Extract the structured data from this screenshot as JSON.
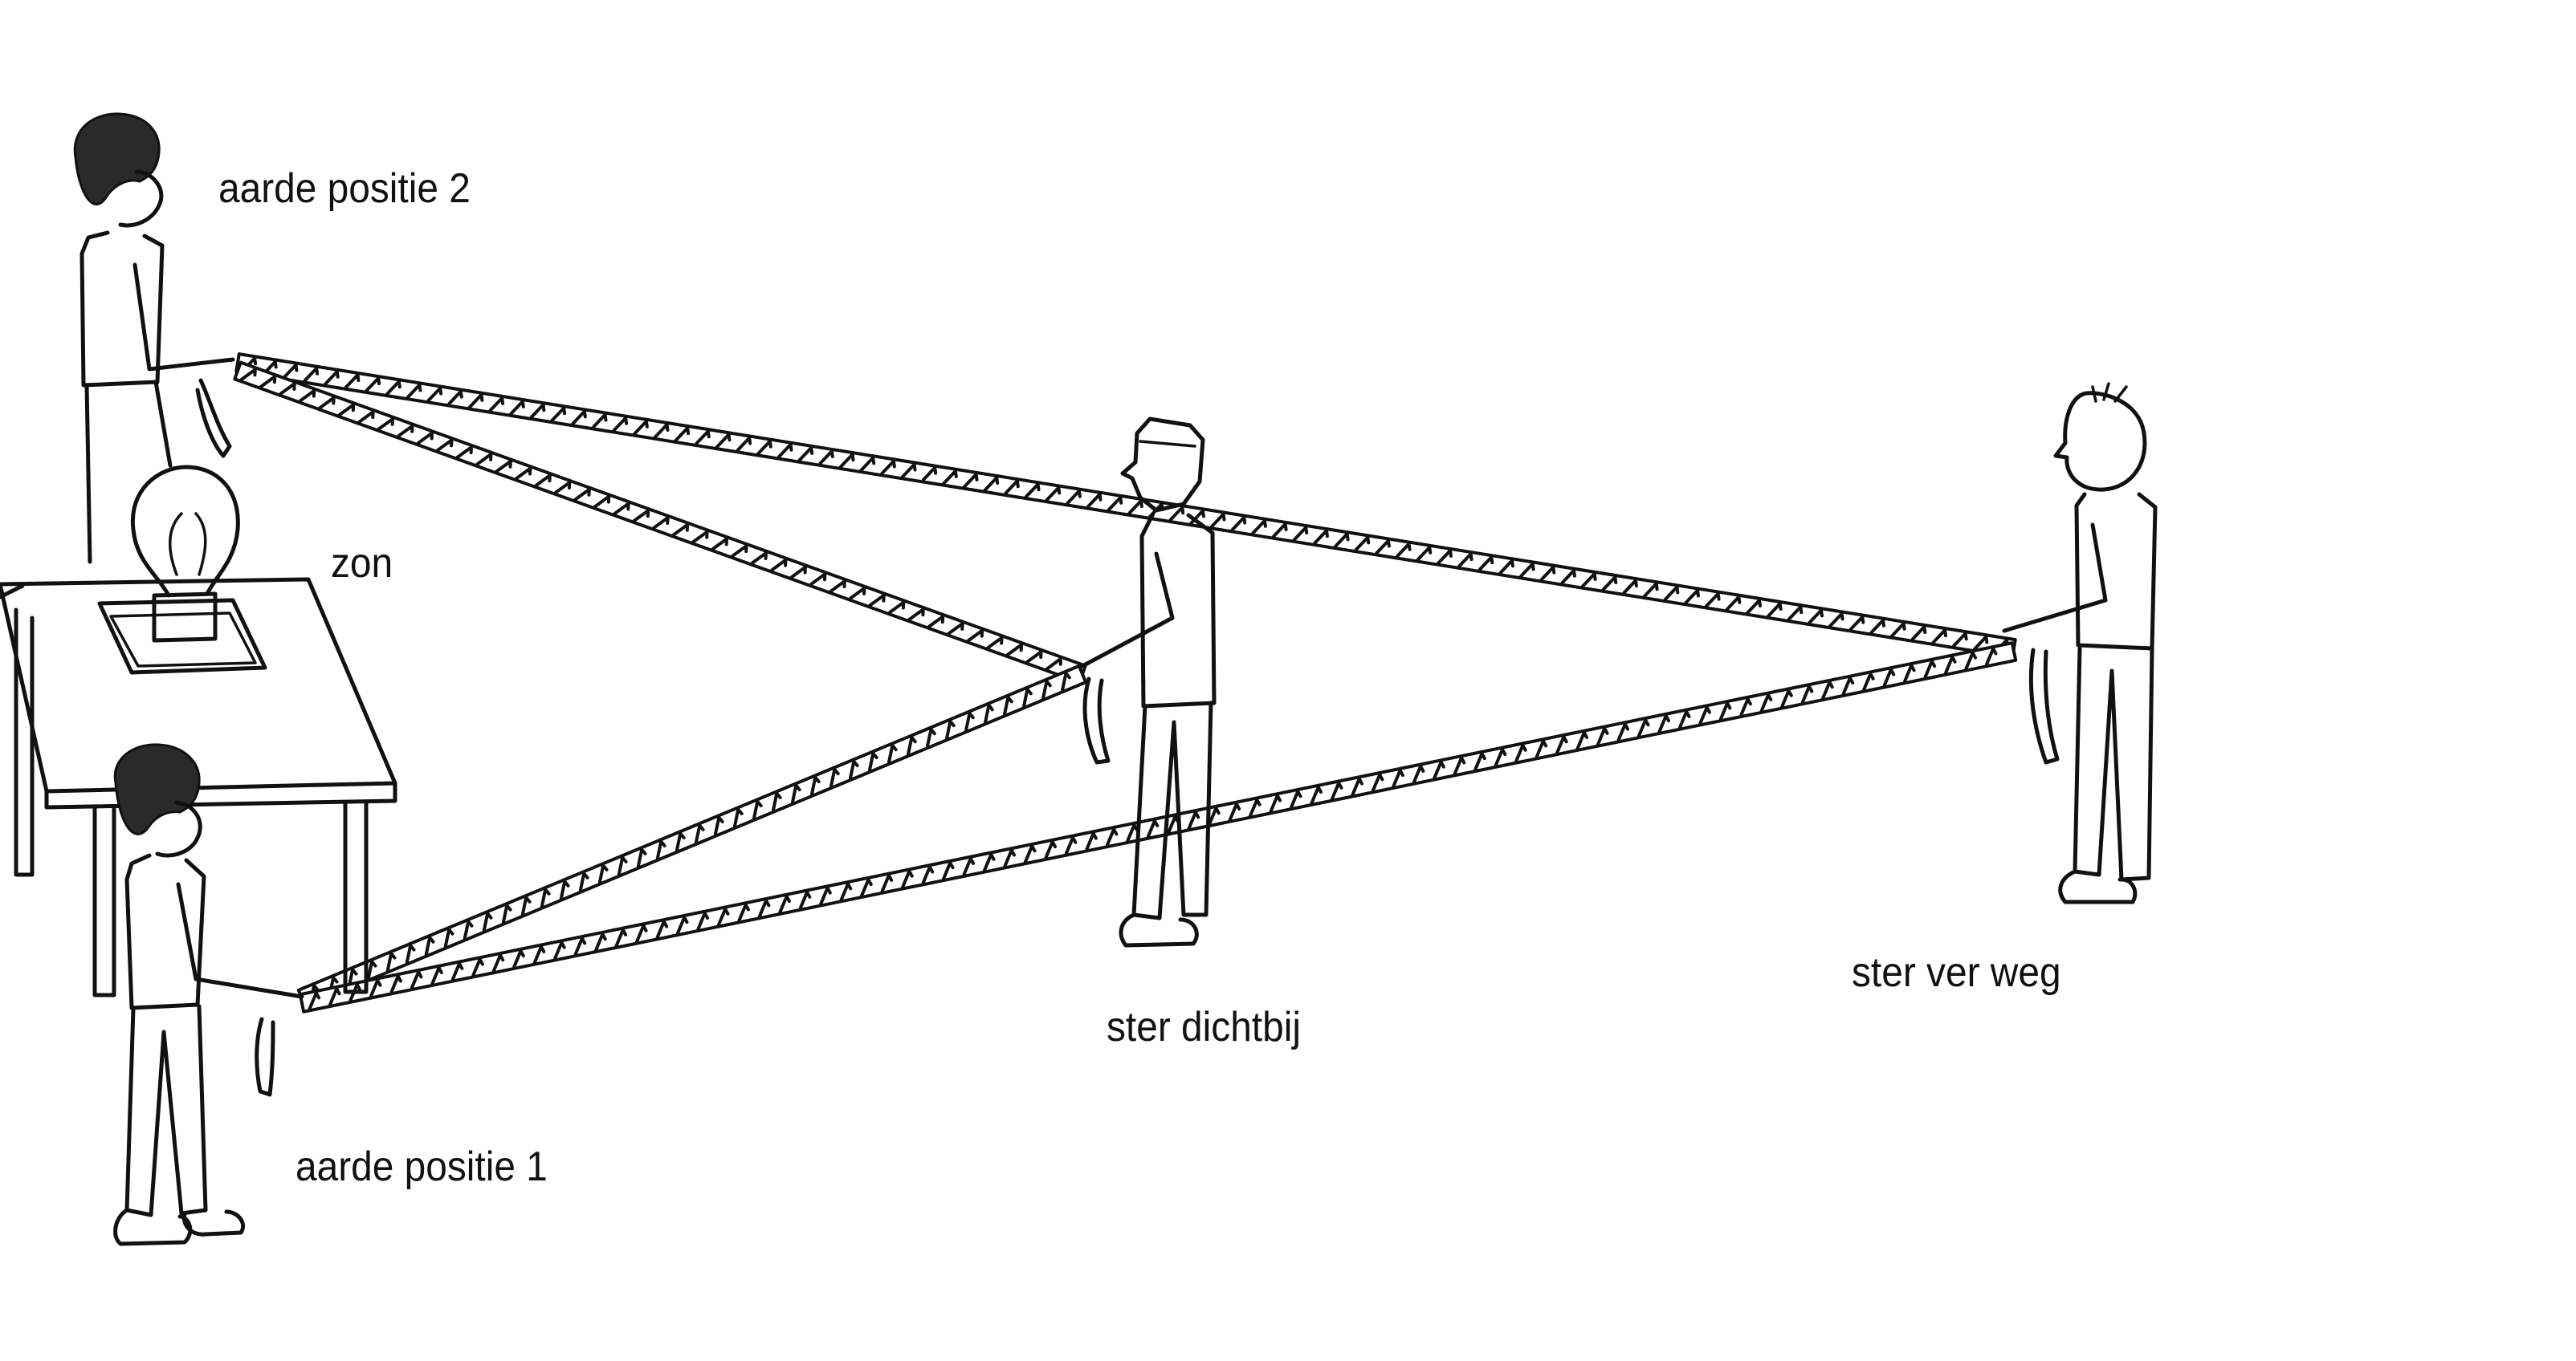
{
  "labels": {
    "earth_position_2": "aarde positie 2",
    "sun": "zon",
    "star_near": "ster dichtbij",
    "star_far": "ster ver weg",
    "earth_position_1": "aarde positie 1"
  },
  "colors": {
    "ink": "#111111",
    "paper": "#ffffff"
  }
}
